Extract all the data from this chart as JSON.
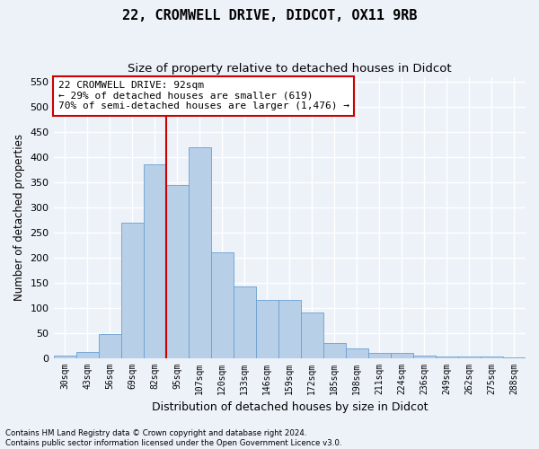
{
  "title1": "22, CROMWELL DRIVE, DIDCOT, OX11 9RB",
  "title2": "Size of property relative to detached houses in Didcot",
  "xlabel": "Distribution of detached houses by size in Didcot",
  "ylabel": "Number of detached properties",
  "categories": [
    "30sqm",
    "43sqm",
    "56sqm",
    "69sqm",
    "82sqm",
    "95sqm",
    "107sqm",
    "120sqm",
    "133sqm",
    "146sqm",
    "159sqm",
    "172sqm",
    "185sqm",
    "198sqm",
    "211sqm",
    "224sqm",
    "236sqm",
    "249sqm",
    "262sqm",
    "275sqm",
    "288sqm"
  ],
  "values": [
    5,
    12,
    48,
    270,
    385,
    345,
    420,
    210,
    143,
    115,
    115,
    90,
    30,
    18,
    10,
    10,
    4,
    2,
    3,
    2,
    1
  ],
  "bar_color": "#b8cfe8",
  "bar_edge_color": "#6a9fd0",
  "annotation_line1": "22 CROMWELL DRIVE: 92sqm",
  "annotation_line2": "← 29% of detached houses are smaller (619)",
  "annotation_line3": "70% of semi-detached houses are larger (1,476) →",
  "annotation_box_color": "#ffffff",
  "annotation_box_edge": "#cc0000",
  "vline_color": "#cc0000",
  "footnote1": "Contains HM Land Registry data © Crown copyright and database right 2024.",
  "footnote2": "Contains public sector information licensed under the Open Government Licence v3.0.",
  "ylim": [
    0,
    560
  ],
  "yticks": [
    0,
    50,
    100,
    150,
    200,
    250,
    300,
    350,
    400,
    450,
    500,
    550
  ],
  "bg_color": "#edf2f9",
  "grid_color": "#ffffff",
  "title1_fontsize": 11,
  "title2_fontsize": 9.5,
  "vline_x_idx": 4.5
}
